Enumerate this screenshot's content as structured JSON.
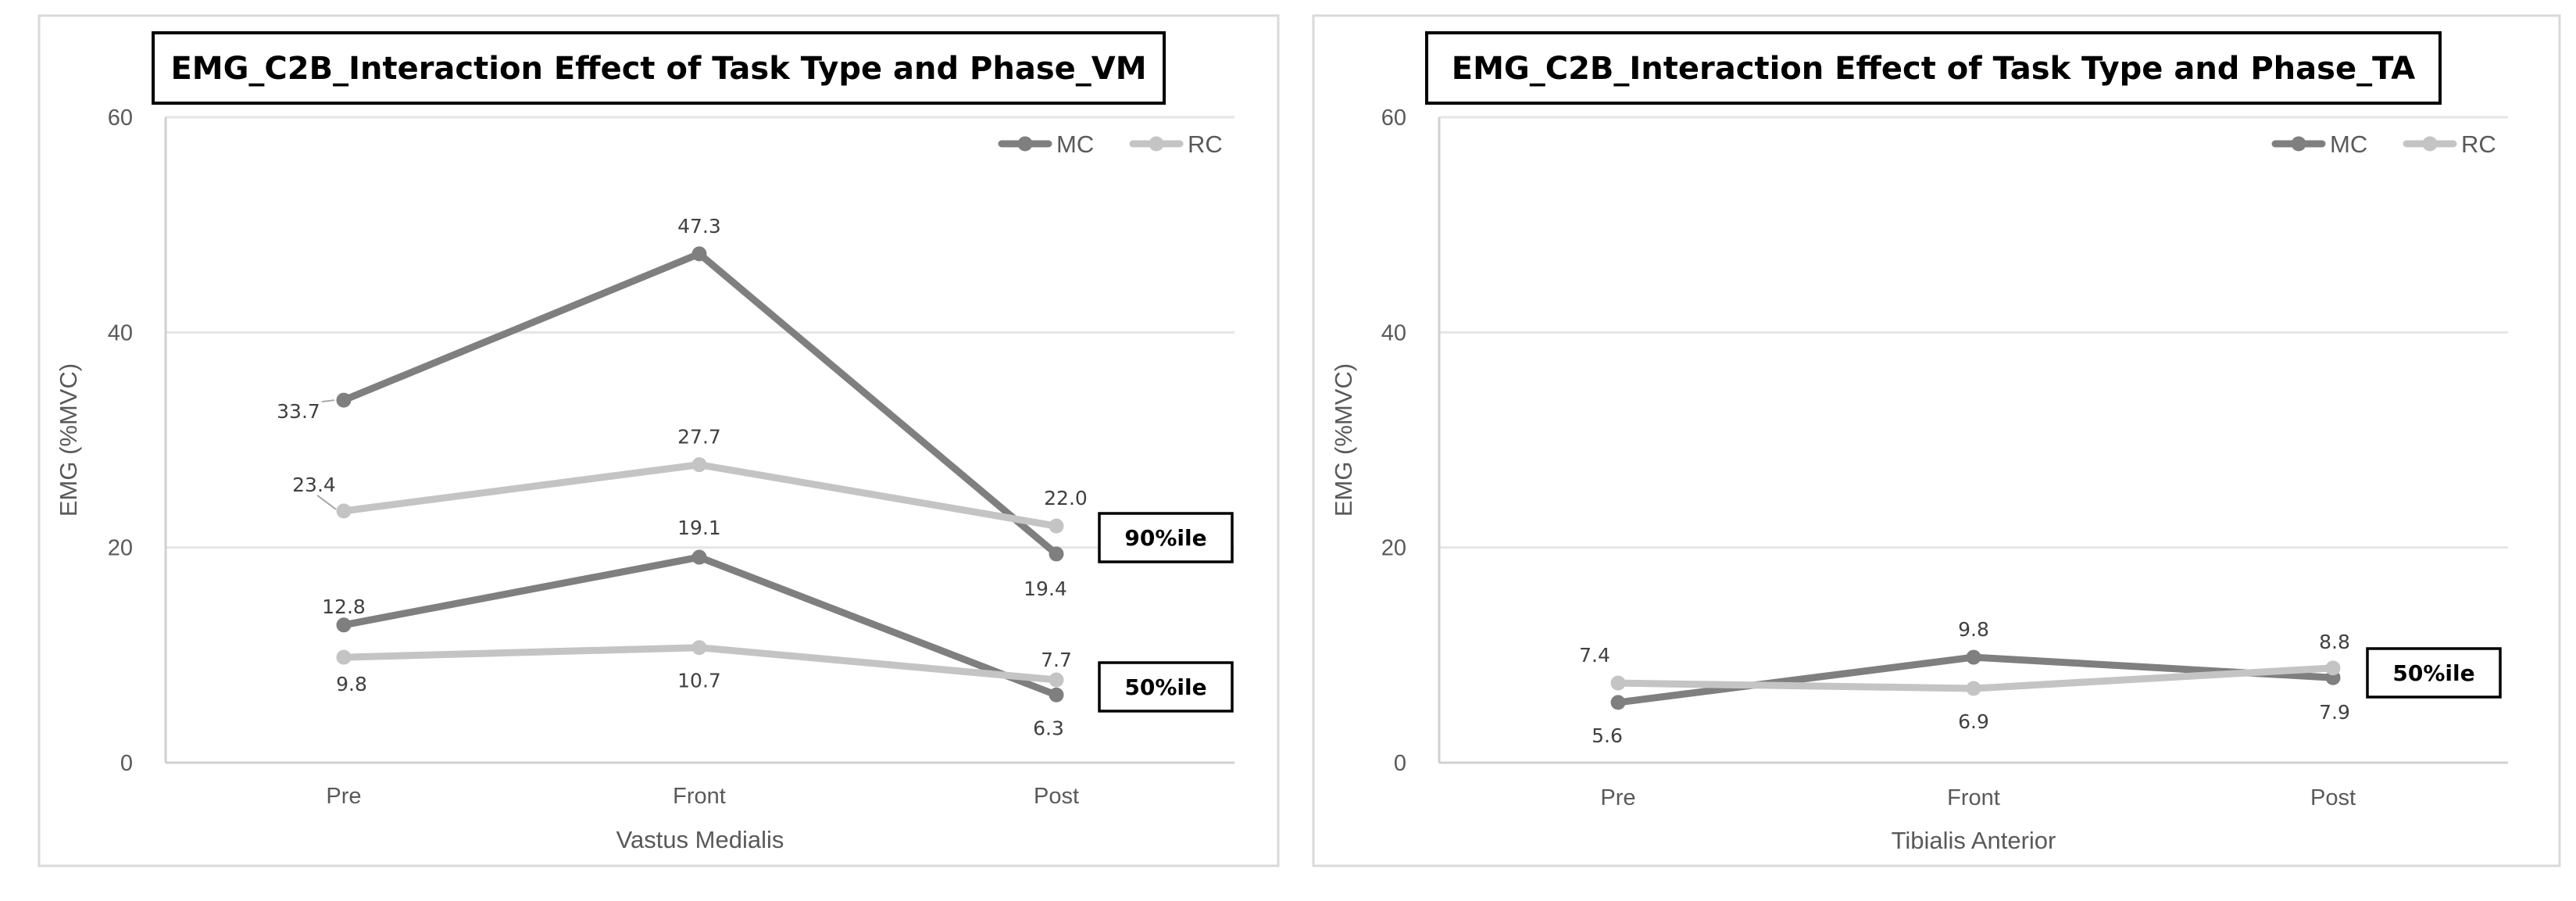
{
  "colors": {
    "MC": "#7f7f7f",
    "RC": "#c4c4c4"
  },
  "chart_data": [
    {
      "type": "line",
      "title": "EMG_C2B_Interaction Effect of Task Type and Phase_VM",
      "xlabel": "Vastus Medialis",
      "ylabel": "EMG (%MVC)",
      "categories": [
        "Pre",
        "Front",
        "Post"
      ],
      "ylim": [
        0,
        60
      ],
      "yticks": [
        0,
        20,
        40,
        60
      ],
      "grid": true,
      "legend": {
        "position": "top-right",
        "entries": [
          "MC",
          "RC"
        ]
      },
      "series": [
        {
          "name": "MC",
          "group": "90%ile",
          "values": [
            33.7,
            47.3,
            19.4
          ],
          "labels": [
            "33.7",
            "47.3",
            "19.4"
          ]
        },
        {
          "name": "RC",
          "group": "90%ile",
          "values": [
            23.4,
            27.7,
            22.0
          ],
          "labels": [
            "23.4",
            "27.7",
            "22.0"
          ]
        },
        {
          "name": "MC",
          "group": "50%ile",
          "values": [
            12.8,
            19.1,
            6.3
          ],
          "labels": [
            "12.8",
            "19.1",
            "6.3"
          ]
        },
        {
          "name": "RC",
          "group": "50%ile",
          "values": [
            9.8,
            10.7,
            7.7
          ],
          "labels": [
            "9.8",
            "10.7",
            "7.7"
          ]
        }
      ],
      "annotations": [
        "90%ile",
        "50%ile"
      ]
    },
    {
      "type": "line",
      "title": "EMG_C2B_Interaction Effect of Task Type and Phase_TA",
      "xlabel": "Tibialis Anterior",
      "ylabel": "EMG (%MVC)",
      "categories": [
        "Pre",
        "Front",
        "Post"
      ],
      "ylim": [
        0,
        60
      ],
      "yticks": [
        0,
        20,
        40,
        60
      ],
      "grid": true,
      "legend": {
        "position": "top-right",
        "entries": [
          "MC",
          "RC"
        ]
      },
      "series": [
        {
          "name": "MC",
          "group": "50%ile",
          "values": [
            5.6,
            9.8,
            7.9
          ],
          "labels": [
            "5.6",
            "9.8",
            "7.9"
          ]
        },
        {
          "name": "RC",
          "group": "50%ile",
          "values": [
            7.4,
            6.9,
            8.8
          ],
          "labels": [
            "7.4",
            "6.9",
            "8.8"
          ]
        }
      ],
      "annotations": [
        "50%ile"
      ]
    }
  ]
}
